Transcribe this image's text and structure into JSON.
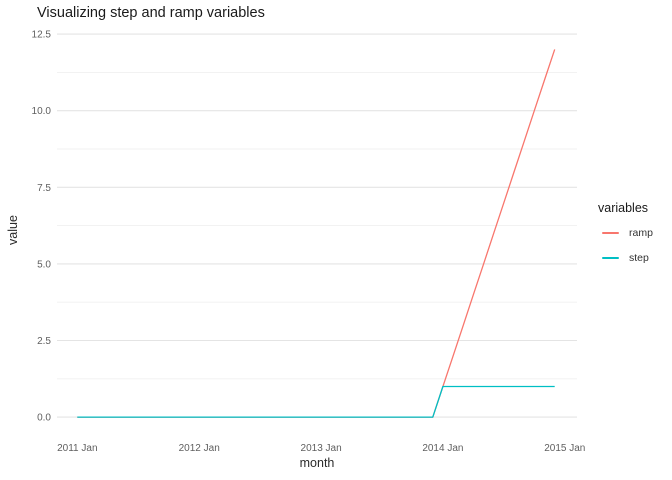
{
  "chart_data": {
    "type": "line",
    "title": "Visualizing step and ramp variables",
    "xlabel": "month",
    "ylabel": "value",
    "legend_title": "variables",
    "legend_position": "right",
    "grid": "horizontal-only",
    "background_color": "#FFFFFF",
    "grid_major_color": "#E4E4E4",
    "grid_minor_color": "#F0F0F0",
    "x_unit": "months since 2011 Jan (index 0 = 2011 Jan, 47 = 2014 Dec)",
    "x_tick_values": [
      0,
      12,
      24,
      36,
      48
    ],
    "x_tick_labels": [
      "2011 Jan",
      "2012 Jan",
      "2013 Jan",
      "2014 Jan",
      "2015 Jan"
    ],
    "y_tick_values": [
      0,
      2.5,
      5,
      7.5,
      10,
      12.5
    ],
    "y_tick_labels": [
      "0.0",
      "2.5",
      "5.0",
      "7.5",
      "10.0",
      "12.5"
    ],
    "xlim": [
      -2,
      49.2
    ],
    "ylim": [
      -0.55,
      12.6
    ],
    "series": [
      {
        "name": "ramp",
        "color": "#F8766D",
        "values": [
          0,
          0,
          0,
          0,
          0,
          0,
          0,
          0,
          0,
          0,
          0,
          0,
          0,
          0,
          0,
          0,
          0,
          0,
          0,
          0,
          0,
          0,
          0,
          0,
          0,
          0,
          0,
          0,
          0,
          0,
          0,
          0,
          0,
          0,
          0,
          0,
          1,
          2,
          3,
          4,
          5,
          6,
          7,
          8,
          9,
          10,
          11,
          12
        ]
      },
      {
        "name": "step",
        "color": "#00BFC4",
        "values": [
          0,
          0,
          0,
          0,
          0,
          0,
          0,
          0,
          0,
          0,
          0,
          0,
          0,
          0,
          0,
          0,
          0,
          0,
          0,
          0,
          0,
          0,
          0,
          0,
          0,
          0,
          0,
          0,
          0,
          0,
          0,
          0,
          0,
          0,
          0,
          0,
          1,
          1,
          1,
          1,
          1,
          1,
          1,
          1,
          1,
          1,
          1,
          1
        ]
      }
    ]
  }
}
